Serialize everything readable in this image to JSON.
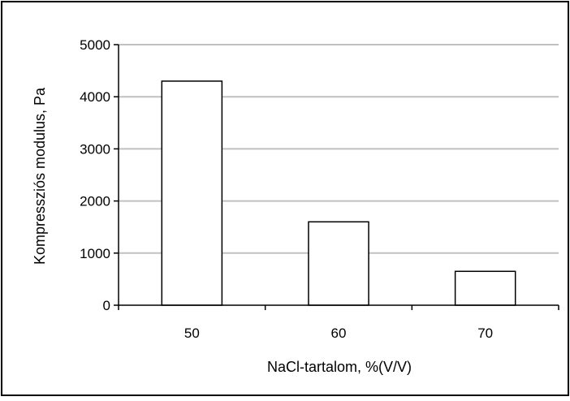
{
  "chart_data": {
    "type": "bar",
    "xlabel": "NaCl-tartalom, %(V/V)",
    "ylabel": "Kompressziós modulus, Pa",
    "categories": [
      "50",
      "60",
      "70"
    ],
    "values": [
      4300,
      1600,
      650
    ],
    "ylim": [
      0,
      5000
    ],
    "yticks": [
      "0",
      "1000",
      "2000",
      "3000",
      "4000",
      "5000"
    ],
    "grid": true,
    "legend": "none",
    "bar_fill": "#ffffff",
    "bar_stroke": "#000000",
    "grid_color": "#c0c0c0"
  }
}
